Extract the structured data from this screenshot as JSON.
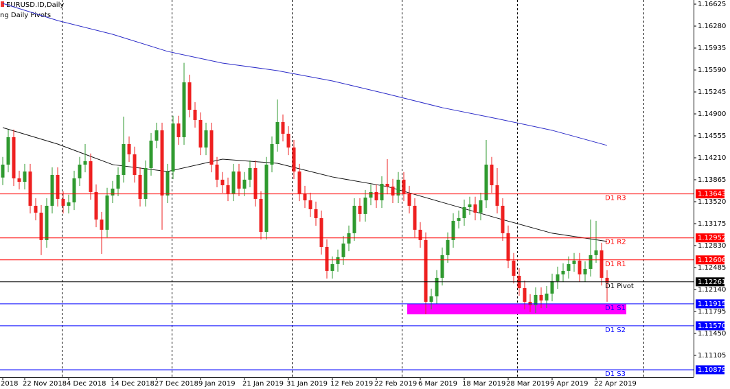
{
  "chart_data": {
    "type": "candlestick",
    "title": "EURUSD.ID,Daily",
    "subtitle": "ng Daily Pivots",
    "up_color": "#2f9a2f",
    "down_color": "#ee2020",
    "ylim": [
      1.1076,
      1.1669
    ],
    "yticks": [
      1.16625,
      {
        "value": 1.1628,
        "label": "1.16280"
      },
      1.15935,
      {
        "value": 1.1559,
        "label": "1.15590"
      },
      1.15245,
      {
        "value": 1.149,
        "label": "1.14900"
      },
      1.14555,
      {
        "value": 1.1421,
        "label": "1.14210"
      },
      1.13865,
      {
        "value": 1.1352,
        "label": "1.13520"
      },
      1.13175,
      {
        "value": 1.1283,
        "label": "1.12830"
      },
      1.12485,
      {
        "value": 1.1214,
        "label": "1.12140"
      },
      1.11795,
      {
        "value": 1.1145,
        "label": "1.11450"
      },
      1.11105
    ],
    "xticks": [
      {
        "value": 0,
        "label": "2018"
      },
      {
        "value": 4,
        "label": "22 Nov 2018"
      },
      {
        "value": 12,
        "label": "4 Dec 2018"
      },
      {
        "value": 20,
        "label": "14 Dec 2018"
      },
      {
        "value": 28,
        "label": "27 Dec 2018"
      },
      {
        "value": 36,
        "label": "9 Jan 2019"
      },
      {
        "value": 44,
        "label": "21 Jan 2019"
      },
      {
        "value": 52,
        "label": "31 Jan 2019"
      },
      {
        "value": 60,
        "label": "12 Feb 2019"
      },
      {
        "value": 68,
        "label": "22 Feb 2019"
      },
      {
        "value": 76,
        "label": "6 Mar 2019"
      },
      {
        "value": 84,
        "label": "18 Mar 2019"
      },
      {
        "value": 92,
        "label": "28 Mar 2019"
      },
      {
        "value": 100,
        "label": "9 Apr 2019"
      },
      {
        "value": 108,
        "label": "22 Apr 2019"
      }
    ],
    "open": [
      1.139,
      1.14103,
      1.14534,
      1.13887,
      1.13833,
      1.13995,
      1.13456,
      1.13348,
      1.12917,
      1.13456,
      1.13941,
      1.13564,
      1.13456,
      1.1351,
      1.13887,
      1.14103,
      1.14157,
      1.13672,
      1.1324,
      1.13079,
      1.13618,
      1.13726,
      1.13941,
      1.14426,
      1.14265,
      1.13941,
      1.13564,
      1.14049,
      1.1448,
      1.14642,
      1.13618,
      1.13995,
      1.1475,
      1.14534,
      1.15396,
      1.14965,
      1.14804,
      1.14372,
      1.14642,
      1.14103,
      1.13866,
      1.13779,
      1.1365,
      1.13995,
      1.13726,
      1.13866,
      1.14049,
      1.13564,
      1.13046,
      1.14103,
      1.14426,
      1.14771,
      1.14588,
      1.14372,
      1.13995,
      1.1365,
      1.13542,
      1.13402,
      1.13262,
      1.12809,
      1.12432,
      1.1254,
      1.12648,
      1.12863,
      1.13025,
      1.13456,
      1.13327,
      1.13585,
      1.13672,
      1.13542,
      1.13801,
      1.13758,
      1.13618,
      1.13866,
      1.1365,
      1.13456,
      1.13079,
      1.12917,
      1.11947,
      1.12033,
      1.12324,
      1.1268,
      1.12917,
      1.13219,
      1.13262,
      1.13434,
      1.13478,
      1.13348,
      1.13542,
      1.14103,
      1.13779,
      1.13456,
      1.13025,
      1.12594,
      1.12356,
      1.12162,
      1.11947,
      1.11893,
      1.12055,
      1.11968,
      1.12076,
      1.1227,
      1.12378,
      1.12432,
      1.1254,
      1.12594,
      1.12378,
      1.12464,
      1.1268,
      1.12755,
      1.12324
    ],
    "high": [
      1.14223,
      1.14654,
      1.14654,
      1.14007,
      1.14115,
      1.14115,
      1.13576,
      1.13468,
      1.13576,
      1.14061,
      1.14061,
      1.13684,
      1.1363,
      1.14007,
      1.14223,
      1.14426,
      1.14277,
      1.13792,
      1.1336,
      1.13738,
      1.13846,
      1.14061,
      1.14857,
      1.14546,
      1.14385,
      1.14061,
      1.14169,
      1.146,
      1.14762,
      1.14762,
      1.14115,
      1.1487,
      1.1487,
      1.15702,
      1.15516,
      1.15085,
      1.14924,
      1.14762,
      1.14762,
      1.14223,
      1.13986,
      1.13899,
      1.14115,
      1.14115,
      1.13986,
      1.14169,
      1.14169,
      1.13684,
      1.14223,
      1.14546,
      1.15127,
      1.14891,
      1.14708,
      1.14492,
      1.14115,
      1.1377,
      1.13662,
      1.13522,
      1.13382,
      1.12929,
      1.1266,
      1.12768,
      1.12983,
      1.13145,
      1.13576,
      1.13576,
      1.13705,
      1.13792,
      1.13792,
      1.13921,
      1.14189,
      1.13878,
      1.13986,
      1.13986,
      1.1377,
      1.13576,
      1.13199,
      1.13037,
      1.12153,
      1.12444,
      1.128,
      1.13037,
      1.13339,
      1.13382,
      1.13554,
      1.13598,
      1.13598,
      1.13662,
      1.1449,
      1.14223,
      1.14049,
      1.13576,
      1.13145,
      1.12714,
      1.12476,
      1.12282,
      1.12067,
      1.12175,
      1.12175,
      1.12196,
      1.1239,
      1.12498,
      1.12552,
      1.1266,
      1.12714,
      1.12714,
      1.12584,
      1.1324,
      1.13219,
      1.12875,
      1.12444
    ],
    "low": [
      1.1378,
      1.13983,
      1.13767,
      1.13713,
      1.13713,
      1.13336,
      1.13228,
      1.1268,
      1.12797,
      1.13336,
      1.13444,
      1.13336,
      1.13336,
      1.1339,
      1.13767,
      1.13983,
      1.13552,
      1.1312,
      1.12701,
      1.12959,
      1.13498,
      1.13606,
      1.13821,
      1.14145,
      1.13821,
      1.13444,
      1.13444,
      1.13929,
      1.1436,
      1.13079,
      1.13498,
      1.13875,
      1.14414,
      1.14414,
      1.14845,
      1.14684,
      1.14252,
      1.14252,
      1.13983,
      1.13746,
      1.13659,
      1.1353,
      1.1353,
      1.13606,
      1.13606,
      1.13746,
      1.13444,
      1.12926,
      1.12926,
      1.13983,
      1.14306,
      1.14468,
      1.14252,
      1.13875,
      1.1353,
      1.13422,
      1.13282,
      1.13142,
      1.12689,
      1.12312,
      1.12312,
      1.1242,
      1.12528,
      1.12743,
      1.12905,
      1.13207,
      1.13207,
      1.13465,
      1.13422,
      1.13422,
      1.13638,
      1.13498,
      1.13498,
      1.1353,
      1.13336,
      1.12959,
      1.12797,
      1.11753,
      1.11827,
      1.11913,
      1.12204,
      1.1256,
      1.12797,
      1.13099,
      1.13142,
      1.13314,
      1.13228,
      1.13228,
      1.13422,
      1.13659,
      1.13336,
      1.12905,
      1.12474,
      1.12236,
      1.12042,
      1.11827,
      1.11785,
      1.11773,
      1.11848,
      1.11848,
      1.11956,
      1.1215,
      1.12258,
      1.12312,
      1.1242,
      1.12258,
      1.12258,
      1.12344,
      1.1256,
      1.12204,
      1.11947
    ],
    "close": [
      1.14103,
      1.14534,
      1.13887,
      1.13833,
      1.13995,
      1.13456,
      1.13348,
      1.12917,
      1.13456,
      1.13941,
      1.13564,
      1.13456,
      1.1351,
      1.13887,
      1.14103,
      1.14157,
      1.13672,
      1.1324,
      1.13079,
      1.13618,
      1.13726,
      1.13941,
      1.14426,
      1.14265,
      1.13941,
      1.13564,
      1.14049,
      1.1448,
      1.14642,
      1.13618,
      1.13995,
      1.1475,
      1.14534,
      1.15396,
      1.14965,
      1.14804,
      1.14372,
      1.14642,
      1.14103,
      1.13866,
      1.13779,
      1.1365,
      1.13995,
      1.13726,
      1.13866,
      1.14049,
      1.13564,
      1.13046,
      1.14103,
      1.14426,
      1.14771,
      1.14588,
      1.14372,
      1.13995,
      1.1365,
      1.13542,
      1.13402,
      1.13262,
      1.12809,
      1.12432,
      1.1254,
      1.12648,
      1.12863,
      1.13025,
      1.13456,
      1.13327,
      1.13585,
      1.13672,
      1.13542,
      1.13801,
      1.13758,
      1.13618,
      1.13866,
      1.1365,
      1.13456,
      1.13079,
      1.12917,
      1.11947,
      1.12033,
      1.12324,
      1.1268,
      1.12917,
      1.13219,
      1.13262,
      1.13434,
      1.13478,
      1.13348,
      1.13542,
      1.14103,
      1.13779,
      1.13456,
      1.13025,
      1.12594,
      1.12356,
      1.12162,
      1.11947,
      1.11893,
      1.12055,
      1.11968,
      1.12076,
      1.1227,
      1.12378,
      1.12432,
      1.1254,
      1.12594,
      1.12378,
      1.12464,
      1.1268,
      1.12755,
      1.12324,
      1.12249
    ],
    "moving_averages": [
      {
        "color": "#2b2bc8",
        "x": [
          0,
          10,
          20,
          30,
          40,
          50,
          60,
          70,
          80,
          90,
          100,
          110
        ],
        "values": [
          1.16636,
          1.16367,
          1.16151,
          1.15882,
          1.15698,
          1.1558,
          1.15418,
          1.15213,
          1.14998,
          1.14825,
          1.14642,
          1.14405
        ]
      },
      {
        "color": "#111111",
        "x": [
          0,
          10,
          20,
          30,
          40,
          50,
          60,
          70,
          80,
          90,
          100,
          110
        ],
        "values": [
          1.14685,
          1.14426,
          1.14103,
          1.13995,
          1.14189,
          1.14124,
          1.13909,
          1.13758,
          1.1351,
          1.13262,
          1.13025,
          1.12896
        ]
      }
    ],
    "level_names": [
      "D1 R3",
      "D1 R2",
      "D1 R1",
      "D1 Pivot",
      "D1 S1",
      "D1 S2",
      "D1 S3"
    ],
    "level_values": [
      1.13643,
      1.12952,
      1.12606,
      1.12261,
      1.11915,
      1.1157,
      1.10879
    ],
    "level_value_labels": [
      "1.13643",
      "1.12952",
      "1.12606",
      "1.12261",
      "1.11915",
      "1.11570",
      "1.10879"
    ],
    "level_colors": [
      "#ff0000",
      "#ff0000",
      "#ff0000",
      "#000000",
      "#0000ff",
      "#0000ff",
      "#0000ff"
    ],
    "zone": {
      "color": "#ff00ff",
      "ylim": [
        1.1175,
        1.1191
      ]
    }
  }
}
